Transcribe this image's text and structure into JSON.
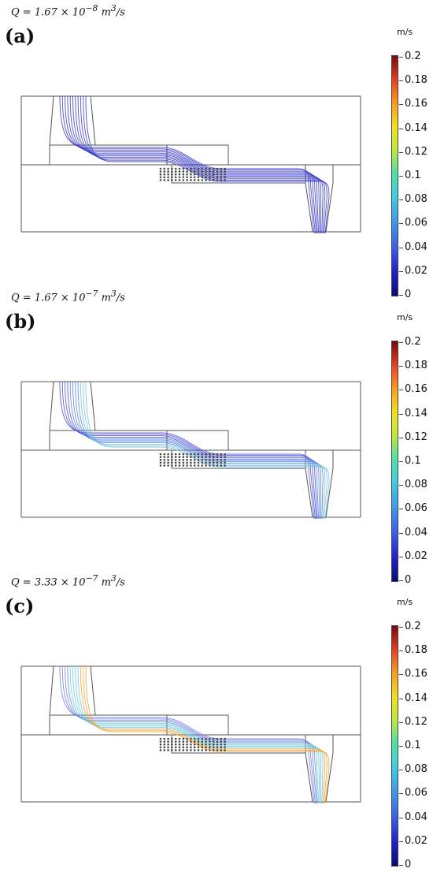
{
  "panels": [
    {
      "letter": "(a)",
      "q_prefix": "Q = 1.67 × 10",
      "q_exp": "−8",
      "q_unit": " m",
      "q_unit_exp": "3",
      "q_tail": "/s"
    },
    {
      "letter": "(b)",
      "q_prefix": "Q = 1.67 × 10",
      "q_exp": "−7",
      "q_unit": " m",
      "q_unit_exp": "3",
      "q_tail": "/s"
    },
    {
      "letter": "(c)",
      "q_prefix": "Q = 3.33 × 10",
      "q_exp": "−7",
      "q_unit": " m",
      "q_unit_exp": "3",
      "q_tail": "/s"
    }
  ],
  "colorbar": {
    "unit": "m/s",
    "ticks": [
      "0.2",
      "0.18",
      "0.16",
      "0.14",
      "0.12",
      "0.1",
      "0.08",
      "0.06",
      "0.04",
      "0.02",
      "0"
    ],
    "range": [
      0,
      0.2
    ],
    "colormap": "rainbow (blue → red)"
  },
  "colors": {
    "low": "#2323c8",
    "mid": "#3fd0e0",
    "high": "#e84020"
  }
}
